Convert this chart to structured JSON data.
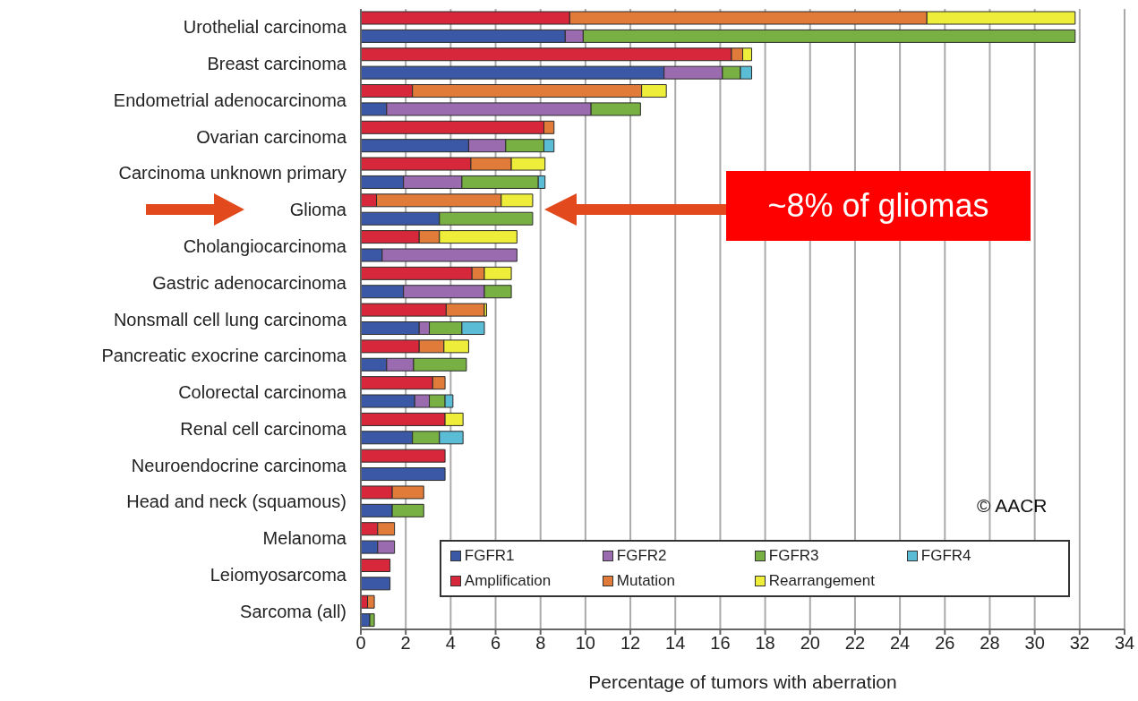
{
  "chart_data": {
    "type": "bar",
    "orientation": "horizontal",
    "stacked": true,
    "xlabel": "Percentage of tumors with aberration",
    "categories": [
      "Urothelial carcinoma",
      null,
      "Breast carcinoma",
      null,
      "Endometrial adenocarcinoma",
      null,
      "Ovarian carcinoma",
      null,
      "Carcinoma unknown primary",
      null,
      "Glioma",
      null,
      "Cholangiocarcinoma",
      null,
      "Gastric adenocarcinoma",
      null,
      "Nonsmall cell lung carcinoma",
      null,
      "Pancreatic exocrine carcinoma",
      null,
      "Colorectal carcinoma",
      null,
      "Renal cell carcinoma",
      null,
      "Neuroendocrine carcinoma",
      null,
      "Head and neck (squamous)",
      null,
      "Melanoma",
      null,
      "Leiomyosarcoma",
      null,
      "Sarcoma (all)",
      null
    ],
    "series": [
      {
        "name": "FGFR1",
        "color": "#3a58a5",
        "values": [
          null,
          9.1,
          null,
          13.5,
          null,
          1.15,
          null,
          4.8,
          null,
          1.9,
          null,
          3.5,
          null,
          0.95,
          null,
          1.9,
          null,
          2.6,
          null,
          1.15,
          null,
          2.4,
          null,
          2.3,
          null,
          3.75,
          null,
          1.4,
          null,
          0.75,
          null,
          1.3,
          null,
          0.4
        ]
      },
      {
        "name": "FGFR2",
        "color": "#9b6bb0",
        "values": [
          null,
          0.8,
          null,
          2.6,
          null,
          9.1,
          null,
          1.65,
          null,
          2.6,
          null,
          null,
          null,
          6.0,
          null,
          3.6,
          null,
          0.45,
          null,
          1.2,
          null,
          0.65,
          null,
          null,
          null,
          null,
          null,
          null,
          null,
          0.75,
          null,
          null,
          null,
          null
        ]
      },
      {
        "name": "FGFR3",
        "color": "#79b043",
        "values": [
          null,
          21.9,
          null,
          0.8,
          null,
          2.2,
          null,
          1.7,
          null,
          3.4,
          null,
          4.15,
          null,
          null,
          null,
          1.2,
          null,
          1.45,
          null,
          2.35,
          null,
          0.7,
          null,
          1.2,
          null,
          null,
          null,
          1.4,
          null,
          null,
          null,
          null,
          null,
          0.2
        ]
      },
      {
        "name": "FGFR4",
        "color": "#5bbcd6",
        "values": [
          null,
          null,
          null,
          0.5,
          null,
          null,
          null,
          0.45,
          null,
          0.3,
          null,
          null,
          null,
          null,
          null,
          null,
          null,
          1.0,
          null,
          null,
          null,
          0.35,
          null,
          1.05,
          null,
          null,
          null,
          null,
          null,
          null,
          null,
          null,
          null,
          null
        ]
      },
      {
        "name": "Amplification",
        "color": "#d6283a",
        "values": [
          9.3,
          null,
          16.5,
          null,
          2.3,
          null,
          8.15,
          null,
          4.9,
          null,
          0.7,
          null,
          2.6,
          null,
          4.95,
          null,
          3.8,
          null,
          2.6,
          null,
          3.2,
          null,
          3.75,
          null,
          3.75,
          null,
          1.4,
          null,
          0.75,
          null,
          1.3,
          null,
          0.3,
          null
        ]
      },
      {
        "name": "Mutation",
        "color": "#e07b39",
        "values": [
          15.9,
          null,
          0.5,
          null,
          10.2,
          null,
          0.45,
          null,
          1.8,
          null,
          5.55,
          null,
          0.9,
          null,
          0.55,
          null,
          1.7,
          null,
          1.1,
          null,
          0.55,
          null,
          null,
          null,
          null,
          null,
          1.4,
          null,
          0.75,
          null,
          null,
          null,
          0.3,
          null
        ]
      },
      {
        "name": "Rearrangement",
        "color": "#eded3a",
        "values": [
          6.6,
          null,
          0.4,
          null,
          1.1,
          null,
          null,
          null,
          1.5,
          null,
          1.4,
          null,
          3.45,
          null,
          1.2,
          null,
          0.1,
          null,
          1.1,
          null,
          null,
          null,
          0.8,
          null,
          null,
          null,
          null,
          null,
          null,
          null,
          null,
          null,
          null,
          null
        ]
      }
    ],
    "xlim": [
      0,
      34
    ],
    "xticks": [
      0,
      2,
      4,
      6,
      8,
      10,
      12,
      14,
      16,
      18,
      20,
      22,
      24,
      26,
      28,
      30,
      32,
      34
    ],
    "grid": "x",
    "legend": "bottom",
    "annotations": [
      "~8% of gliomas",
      "© AACR"
    ]
  }
}
